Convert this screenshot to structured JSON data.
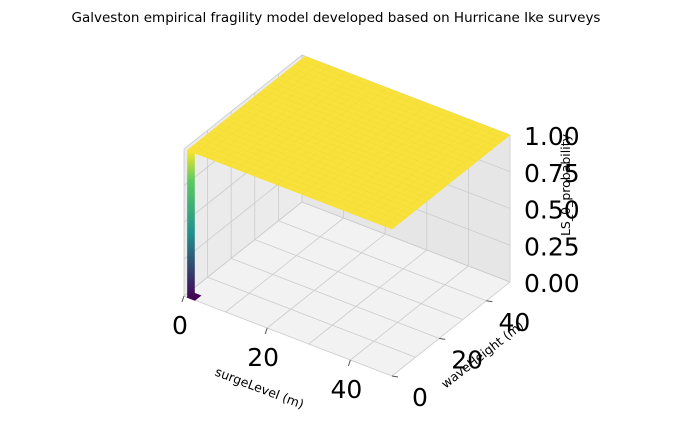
{
  "chart_data": {
    "type": "surface3d",
    "title": "Galveston empirical fragility model developed based on Hurricane Ike surveys",
    "xlabel": "surgeLevel (m)",
    "ylabel": "waveHeight (m)",
    "zlabel": "LS_0_probability",
    "xlim": [
      0,
      50
    ],
    "ylim": [
      0,
      50
    ],
    "zlim": [
      0,
      1
    ],
    "xticks": [
      "0",
      "20",
      "40"
    ],
    "yticks": [
      "0",
      "20",
      "40"
    ],
    "zticks": [
      "0.00",
      "0.25",
      "0.50",
      "0.75",
      "1.00"
    ],
    "colormap": "viridis",
    "surface_value_plateau": 1.0,
    "grid": true
  },
  "colors": {
    "pane_floor": "#f2f2f2",
    "pane_side": "#ebebeb",
    "pane_back": "#e6e6e6",
    "grid": "#cccccc",
    "surface_top": "#f7e13a",
    "surface_high": "#fde725",
    "viridis_low": "#440154",
    "viridis_mid": "#21918c",
    "viridis_high": "#5ec962"
  }
}
